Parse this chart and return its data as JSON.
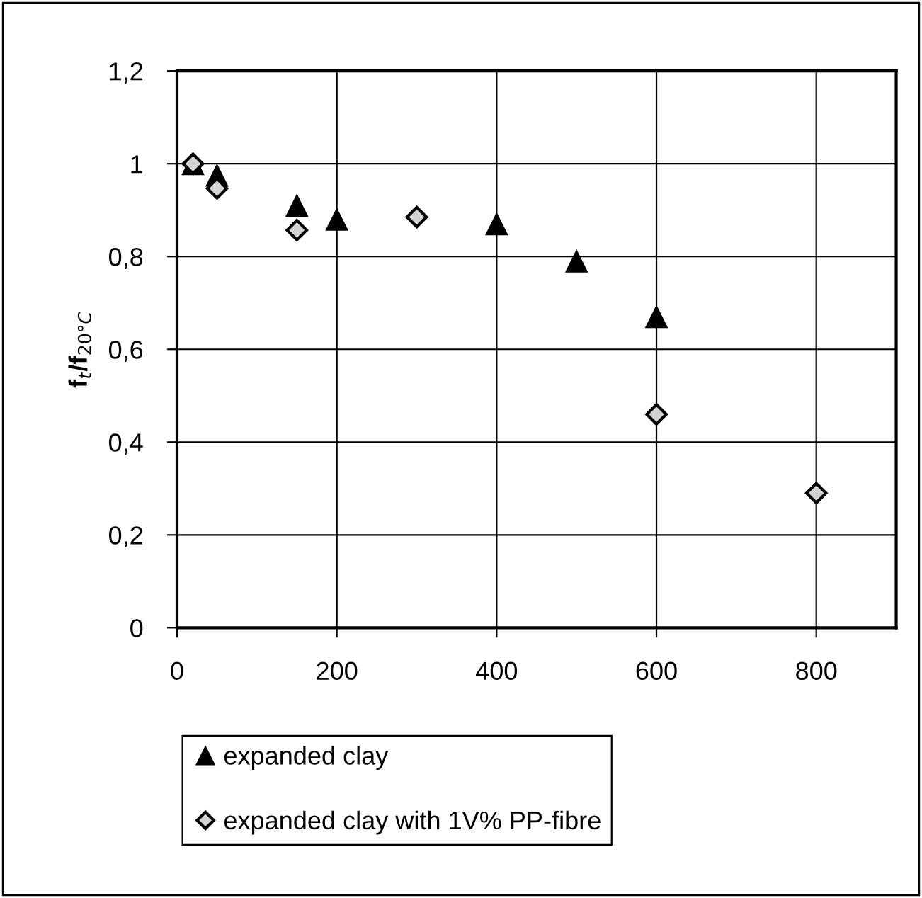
{
  "chart_data": {
    "type": "scatter",
    "ylabel": "f$_{t}$/f$_{20°C}$",
    "xlim": [
      0,
      900
    ],
    "xticks": [
      0,
      200,
      400,
      600,
      800
    ],
    "ylim": [
      0,
      1.2
    ],
    "yticks": [
      0,
      {
        "value": 0.2,
        "label": "0,2"
      },
      {
        "value": 0.4,
        "label": "0,4"
      },
      {
        "value": 0.6,
        "label": "0,6"
      },
      {
        "value": 0.8,
        "label": "0,8"
      },
      1,
      {
        "value": 1.2,
        "label": "1,2"
      }
    ],
    "grid": true,
    "legend": "bottom",
    "series": [
      {
        "name": "expanded clay",
        "color": "#000000",
        "marker": "triangle",
        "x": [
          20,
          50,
          150,
          200,
          400,
          500,
          600
        ],
        "values": [
          1.0,
          0.975,
          0.91,
          0.88,
          0.87,
          0.79,
          0.67
        ]
      },
      {
        "name": "expanded clay with 1V% PP-fibre",
        "color": "#d3d3d3",
        "marker": "diamond",
        "x": [
          20,
          50,
          150,
          300,
          600,
          800
        ],
        "values": [
          1.0,
          0.947,
          0.857,
          0.885,
          0.46,
          0.29
        ]
      }
    ]
  }
}
